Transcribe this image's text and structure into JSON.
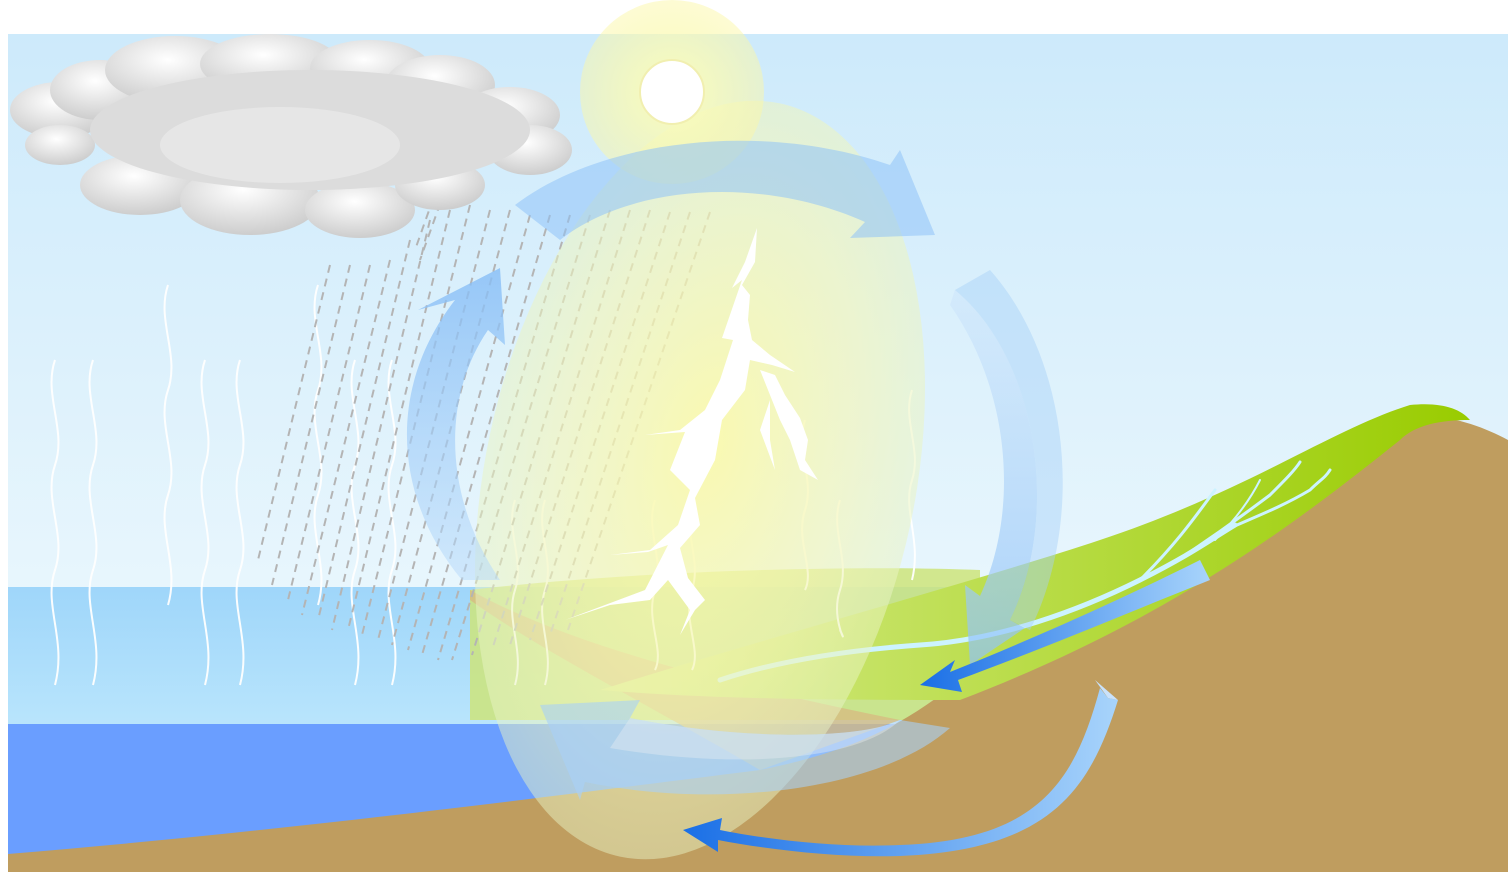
{
  "diagram": {
    "kind": "water-cycle illustration",
    "labels": [],
    "elements": {
      "sky": "sky",
      "sun": "sun",
      "cloud": "rain-cloud",
      "rain": "rain",
      "evaporation": "evaporation",
      "lightning": "lightning",
      "sea": "sea",
      "land": "land",
      "river": "river",
      "cycle_arrows": "cycle-arrows"
    },
    "colors": {
      "sky_top": "#cfeafb",
      "sky_bottom": "#e6f5fd",
      "sea_shallow": "#a9dcfb",
      "sea_deep": "#6a9eff",
      "land": "#bf9d5f",
      "grass_light": "#c7e46a",
      "grass_dark": "#99cc00",
      "arrow": "#8fc2f7",
      "arrow_dark": "#1a6fe6",
      "sun_glow": "#fbf7a8",
      "cloud": "#d6d6d6"
    }
  }
}
